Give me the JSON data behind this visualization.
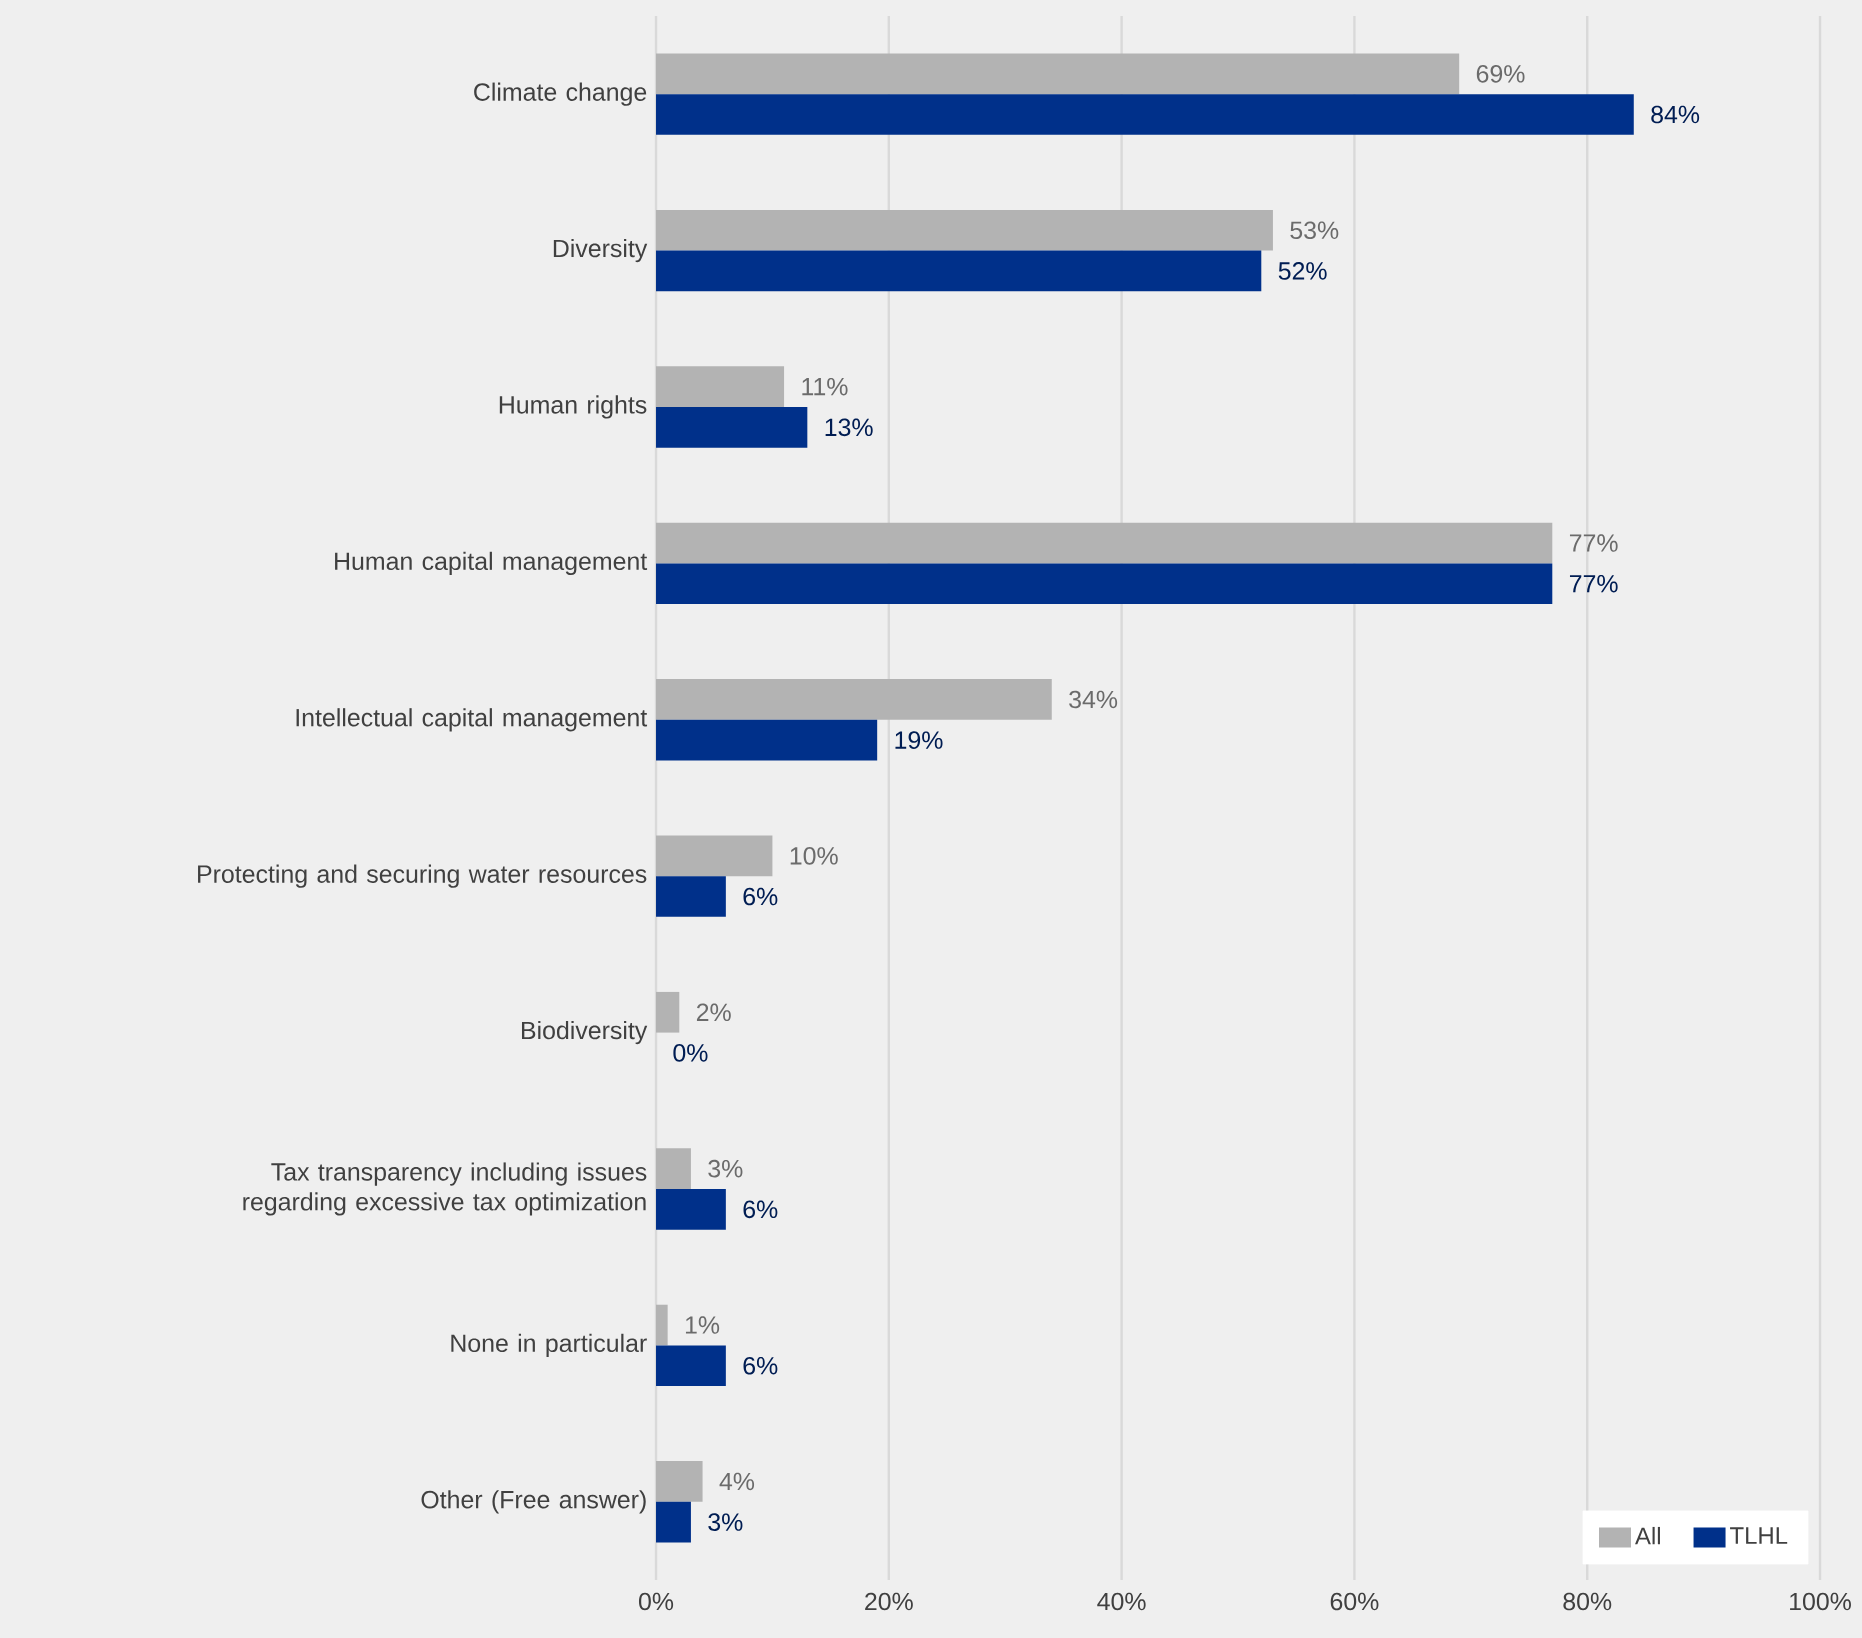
{
  "chart_data": {
    "type": "bar",
    "orientation": "horizontal",
    "categories": [
      "Climate change",
      "Diversity",
      "Human rights",
      "Human capital management",
      "Intellectual capital management",
      "Protecting and securing water resources",
      "Biodiversity",
      "Tax transparency including issues regarding excessive tax optimization",
      "None in particular",
      "Other (Free answer)"
    ],
    "series": [
      {
        "name": "All",
        "color": "#b3b3b3",
        "values": [
          69,
          53,
          11,
          77,
          34,
          10,
          2,
          3,
          1,
          4
        ],
        "value_labels": [
          "69%",
          "53%",
          "11%",
          "77%",
          "34%",
          "10%",
          "2%",
          "3%",
          "1%",
          "4%"
        ]
      },
      {
        "name": "TLHL",
        "color": "#00308a",
        "values": [
          84,
          52,
          13,
          77,
          19,
          6,
          0,
          6,
          6,
          3
        ],
        "value_labels": [
          "84%",
          "52%",
          "13%",
          "77%",
          "19%",
          "6%",
          "0%",
          "6%",
          "6%",
          "3%"
        ]
      }
    ],
    "xlim": [
      0,
      100
    ],
    "xticks": [
      {
        "value": 0,
        "label": "0%"
      },
      {
        "value": 20,
        "label": "20%"
      },
      {
        "value": 40,
        "label": "40%"
      },
      {
        "value": 60,
        "label": "60%"
      },
      {
        "value": 80,
        "label": "80%"
      },
      {
        "value": 100,
        "label": "100%"
      }
    ],
    "grid": "x",
    "legend": "bottom right"
  }
}
